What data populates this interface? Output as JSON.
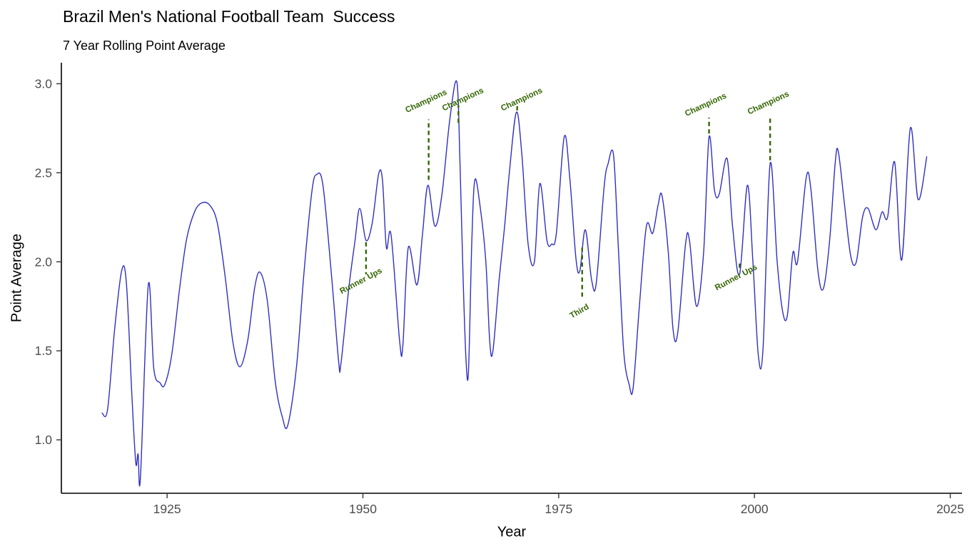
{
  "chart_data": {
    "type": "line",
    "title": "Brazil Men's National Football Team  Success",
    "subtitle": "7 Year Rolling Point Average",
    "xlabel": "Year",
    "ylabel": "Point Average",
    "xlim": [
      1911.5,
      2026.5
    ],
    "ylim": [
      0.7,
      3.09
    ],
    "x_ticks": [
      1925,
      1950,
      1975,
      2000,
      2025
    ],
    "x_tick_labels": [
      "1925",
      "1950",
      "1975",
      "2000",
      "2025"
    ],
    "y_ticks": [
      1.0,
      1.5,
      2.0,
      2.5,
      3.0
    ],
    "y_tick_labels": [
      "1.0",
      "1.5",
      "2.0",
      "2.5",
      "3.0"
    ],
    "grid": false,
    "legend": "none",
    "line_color": "#3030C0",
    "annotation_color": "#336600",
    "axis_color": "#000000",
    "tick_label_color": "#4D4D4D",
    "series": [
      {
        "name": "7 year rolling point average",
        "points": [
          [
            1916.7,
            1.15
          ],
          [
            1917.4,
            1.17
          ],
          [
            1918.3,
            1.62
          ],
          [
            1919.2,
            1.95
          ],
          [
            1919.8,
            1.88
          ],
          [
            1920.5,
            1.25
          ],
          [
            1921.0,
            0.87
          ],
          [
            1921.3,
            0.92
          ],
          [
            1921.6,
            0.79
          ],
          [
            1922.6,
            1.87
          ],
          [
            1923.3,
            1.4
          ],
          [
            1924.1,
            1.32
          ],
          [
            1924.7,
            1.31
          ],
          [
            1925.6,
            1.48
          ],
          [
            1926.6,
            1.85
          ],
          [
            1927.5,
            2.13
          ],
          [
            1928.5,
            2.28
          ],
          [
            1929.4,
            2.33
          ],
          [
            1930.4,
            2.32
          ],
          [
            1931.4,
            2.22
          ],
          [
            1932.4,
            1.92
          ],
          [
            1933.4,
            1.55
          ],
          [
            1934.3,
            1.41
          ],
          [
            1935.3,
            1.56
          ],
          [
            1936.2,
            1.86
          ],
          [
            1936.9,
            1.94
          ],
          [
            1937.8,
            1.78
          ],
          [
            1938.8,
            1.33
          ],
          [
            1939.7,
            1.13
          ],
          [
            1940.4,
            1.08
          ],
          [
            1941.5,
            1.4
          ],
          [
            1942.5,
            1.95
          ],
          [
            1943.5,
            2.4
          ],
          [
            1944.1,
            2.49
          ],
          [
            1944.9,
            2.43
          ],
          [
            1946.0,
            1.92
          ],
          [
            1946.9,
            1.44
          ],
          [
            1947.2,
            1.43
          ],
          [
            1948.2,
            1.85
          ],
          [
            1949.0,
            2.12
          ],
          [
            1949.6,
            2.3
          ],
          [
            1950.4,
            2.12
          ],
          [
            1951.2,
            2.22
          ],
          [
            1952.0,
            2.49
          ],
          [
            1952.5,
            2.46
          ],
          [
            1953.0,
            2.08
          ],
          [
            1953.6,
            2.15
          ],
          [
            1954.7,
            1.55
          ],
          [
            1955.1,
            1.53
          ],
          [
            1955.8,
            2.08
          ],
          [
            1956.9,
            1.87
          ],
          [
            1957.6,
            2.15
          ],
          [
            1958.3,
            2.43
          ],
          [
            1959.2,
            2.2
          ],
          [
            1960.1,
            2.38
          ],
          [
            1961.1,
            2.8
          ],
          [
            1962.0,
            3.01
          ],
          [
            1962.4,
            2.55
          ],
          [
            1962.8,
            1.9
          ],
          [
            1963.2,
            1.42
          ],
          [
            1963.5,
            1.4
          ],
          [
            1963.9,
            2.1
          ],
          [
            1964.3,
            2.46
          ],
          [
            1965.0,
            2.3
          ],
          [
            1965.7,
            2.0
          ],
          [
            1966.2,
            1.55
          ],
          [
            1966.6,
            1.5
          ],
          [
            1967.4,
            1.9
          ],
          [
            1968.1,
            2.2
          ],
          [
            1968.7,
            2.5
          ],
          [
            1969.6,
            2.84
          ],
          [
            1970.3,
            2.6
          ],
          [
            1971.1,
            2.1
          ],
          [
            1971.9,
            2.0
          ],
          [
            1972.6,
            2.44
          ],
          [
            1973.5,
            2.12
          ],
          [
            1974.1,
            2.1
          ],
          [
            1974.7,
            2.16
          ],
          [
            1975.7,
            2.7
          ],
          [
            1976.4,
            2.48
          ],
          [
            1977.2,
            2.02
          ],
          [
            1977.7,
            1.95
          ],
          [
            1978.4,
            2.18
          ],
          [
            1979.2,
            1.9
          ],
          [
            1979.8,
            1.88
          ],
          [
            1980.8,
            2.42
          ],
          [
            1981.3,
            2.55
          ],
          [
            1982.0,
            2.6
          ],
          [
            1982.6,
            2.1
          ],
          [
            1983.3,
            1.5
          ],
          [
            1984.0,
            1.31
          ],
          [
            1984.5,
            1.29
          ],
          [
            1985.3,
            1.75
          ],
          [
            1986.2,
            2.2
          ],
          [
            1987.0,
            2.16
          ],
          [
            1987.7,
            2.32
          ],
          [
            1988.2,
            2.37
          ],
          [
            1989.0,
            2.05
          ],
          [
            1989.6,
            1.62
          ],
          [
            1990.2,
            1.6
          ],
          [
            1991.2,
            2.1
          ],
          [
            1991.7,
            2.12
          ],
          [
            1992.6,
            1.75
          ],
          [
            1993.5,
            2.05
          ],
          [
            1994.2,
            2.7
          ],
          [
            1994.9,
            2.4
          ],
          [
            1995.5,
            2.38
          ],
          [
            1996.5,
            2.58
          ],
          [
            1997.2,
            2.2
          ],
          [
            1998.1,
            1.93
          ],
          [
            1999.1,
            2.43
          ],
          [
            1999.8,
            2.0
          ],
          [
            2000.5,
            1.47
          ],
          [
            2001.1,
            1.52
          ],
          [
            2002.0,
            2.55
          ],
          [
            2002.9,
            2.0
          ],
          [
            2003.6,
            1.72
          ],
          [
            2004.2,
            1.7
          ],
          [
            2004.9,
            2.05
          ],
          [
            2005.5,
            2.0
          ],
          [
            2006.6,
            2.47
          ],
          [
            2007.2,
            2.41
          ],
          [
            2008.1,
            1.95
          ],
          [
            2008.8,
            1.85
          ],
          [
            2009.6,
            2.12
          ],
          [
            2010.3,
            2.55
          ],
          [
            2010.7,
            2.62
          ],
          [
            2011.5,
            2.32
          ],
          [
            2012.3,
            2.03
          ],
          [
            2013.0,
            2.0
          ],
          [
            2013.8,
            2.25
          ],
          [
            2014.5,
            2.3
          ],
          [
            2015.5,
            2.18
          ],
          [
            2016.3,
            2.28
          ],
          [
            2017.0,
            2.25
          ],
          [
            2017.9,
            2.56
          ],
          [
            2018.8,
            2.01
          ],
          [
            2019.9,
            2.75
          ],
          [
            2020.9,
            2.35
          ],
          [
            2022.0,
            2.59
          ]
        ]
      }
    ],
    "annotations": [
      {
        "label": "Runner Ups",
        "dash_x": 1950.4,
        "dash_y1": 2.11,
        "dash_y2": 1.93,
        "label_x": 1949.9,
        "label_y": 1.88,
        "rotation": -28
      },
      {
        "label": "Champions",
        "dash_x": 1958.4,
        "dash_y1": 2.46,
        "dash_y2": 2.8,
        "label_x": 1958.2,
        "label_y": 2.89,
        "rotation": -25
      },
      {
        "label": "Champions",
        "dash_x": 1962.2,
        "dash_y1": 2.78,
        "dash_y2": 2.88,
        "label_x": 1962.9,
        "label_y": 2.9,
        "rotation": -25
      },
      {
        "label": "Champions",
        "dash_x": 1969.7,
        "dash_y1": 2.85,
        "dash_y2": 2.88,
        "label_x": 1970.4,
        "label_y": 2.9,
        "rotation": -25
      },
      {
        "label": "Third",
        "dash_x": 1978.0,
        "dash_y1": 2.08,
        "dash_y2": 1.79,
        "label_x": 1977.8,
        "label_y": 1.71,
        "rotation": -30
      },
      {
        "label": "Champions",
        "dash_x": 1994.2,
        "dash_y1": 2.72,
        "dash_y2": 2.81,
        "label_x": 1993.9,
        "label_y": 2.87,
        "rotation": -25
      },
      {
        "label": "Runner Ups",
        "dash_x": 1998.1,
        "dash_y1": 1.99,
        "dash_y2": 1.95,
        "label_x": 1997.8,
        "label_y": 1.9,
        "rotation": -28
      },
      {
        "label": "Champions",
        "dash_x": 2002.0,
        "dash_y1": 2.57,
        "dash_y2": 2.82,
        "label_x": 2001.9,
        "label_y": 2.88,
        "rotation": -25
      }
    ]
  }
}
